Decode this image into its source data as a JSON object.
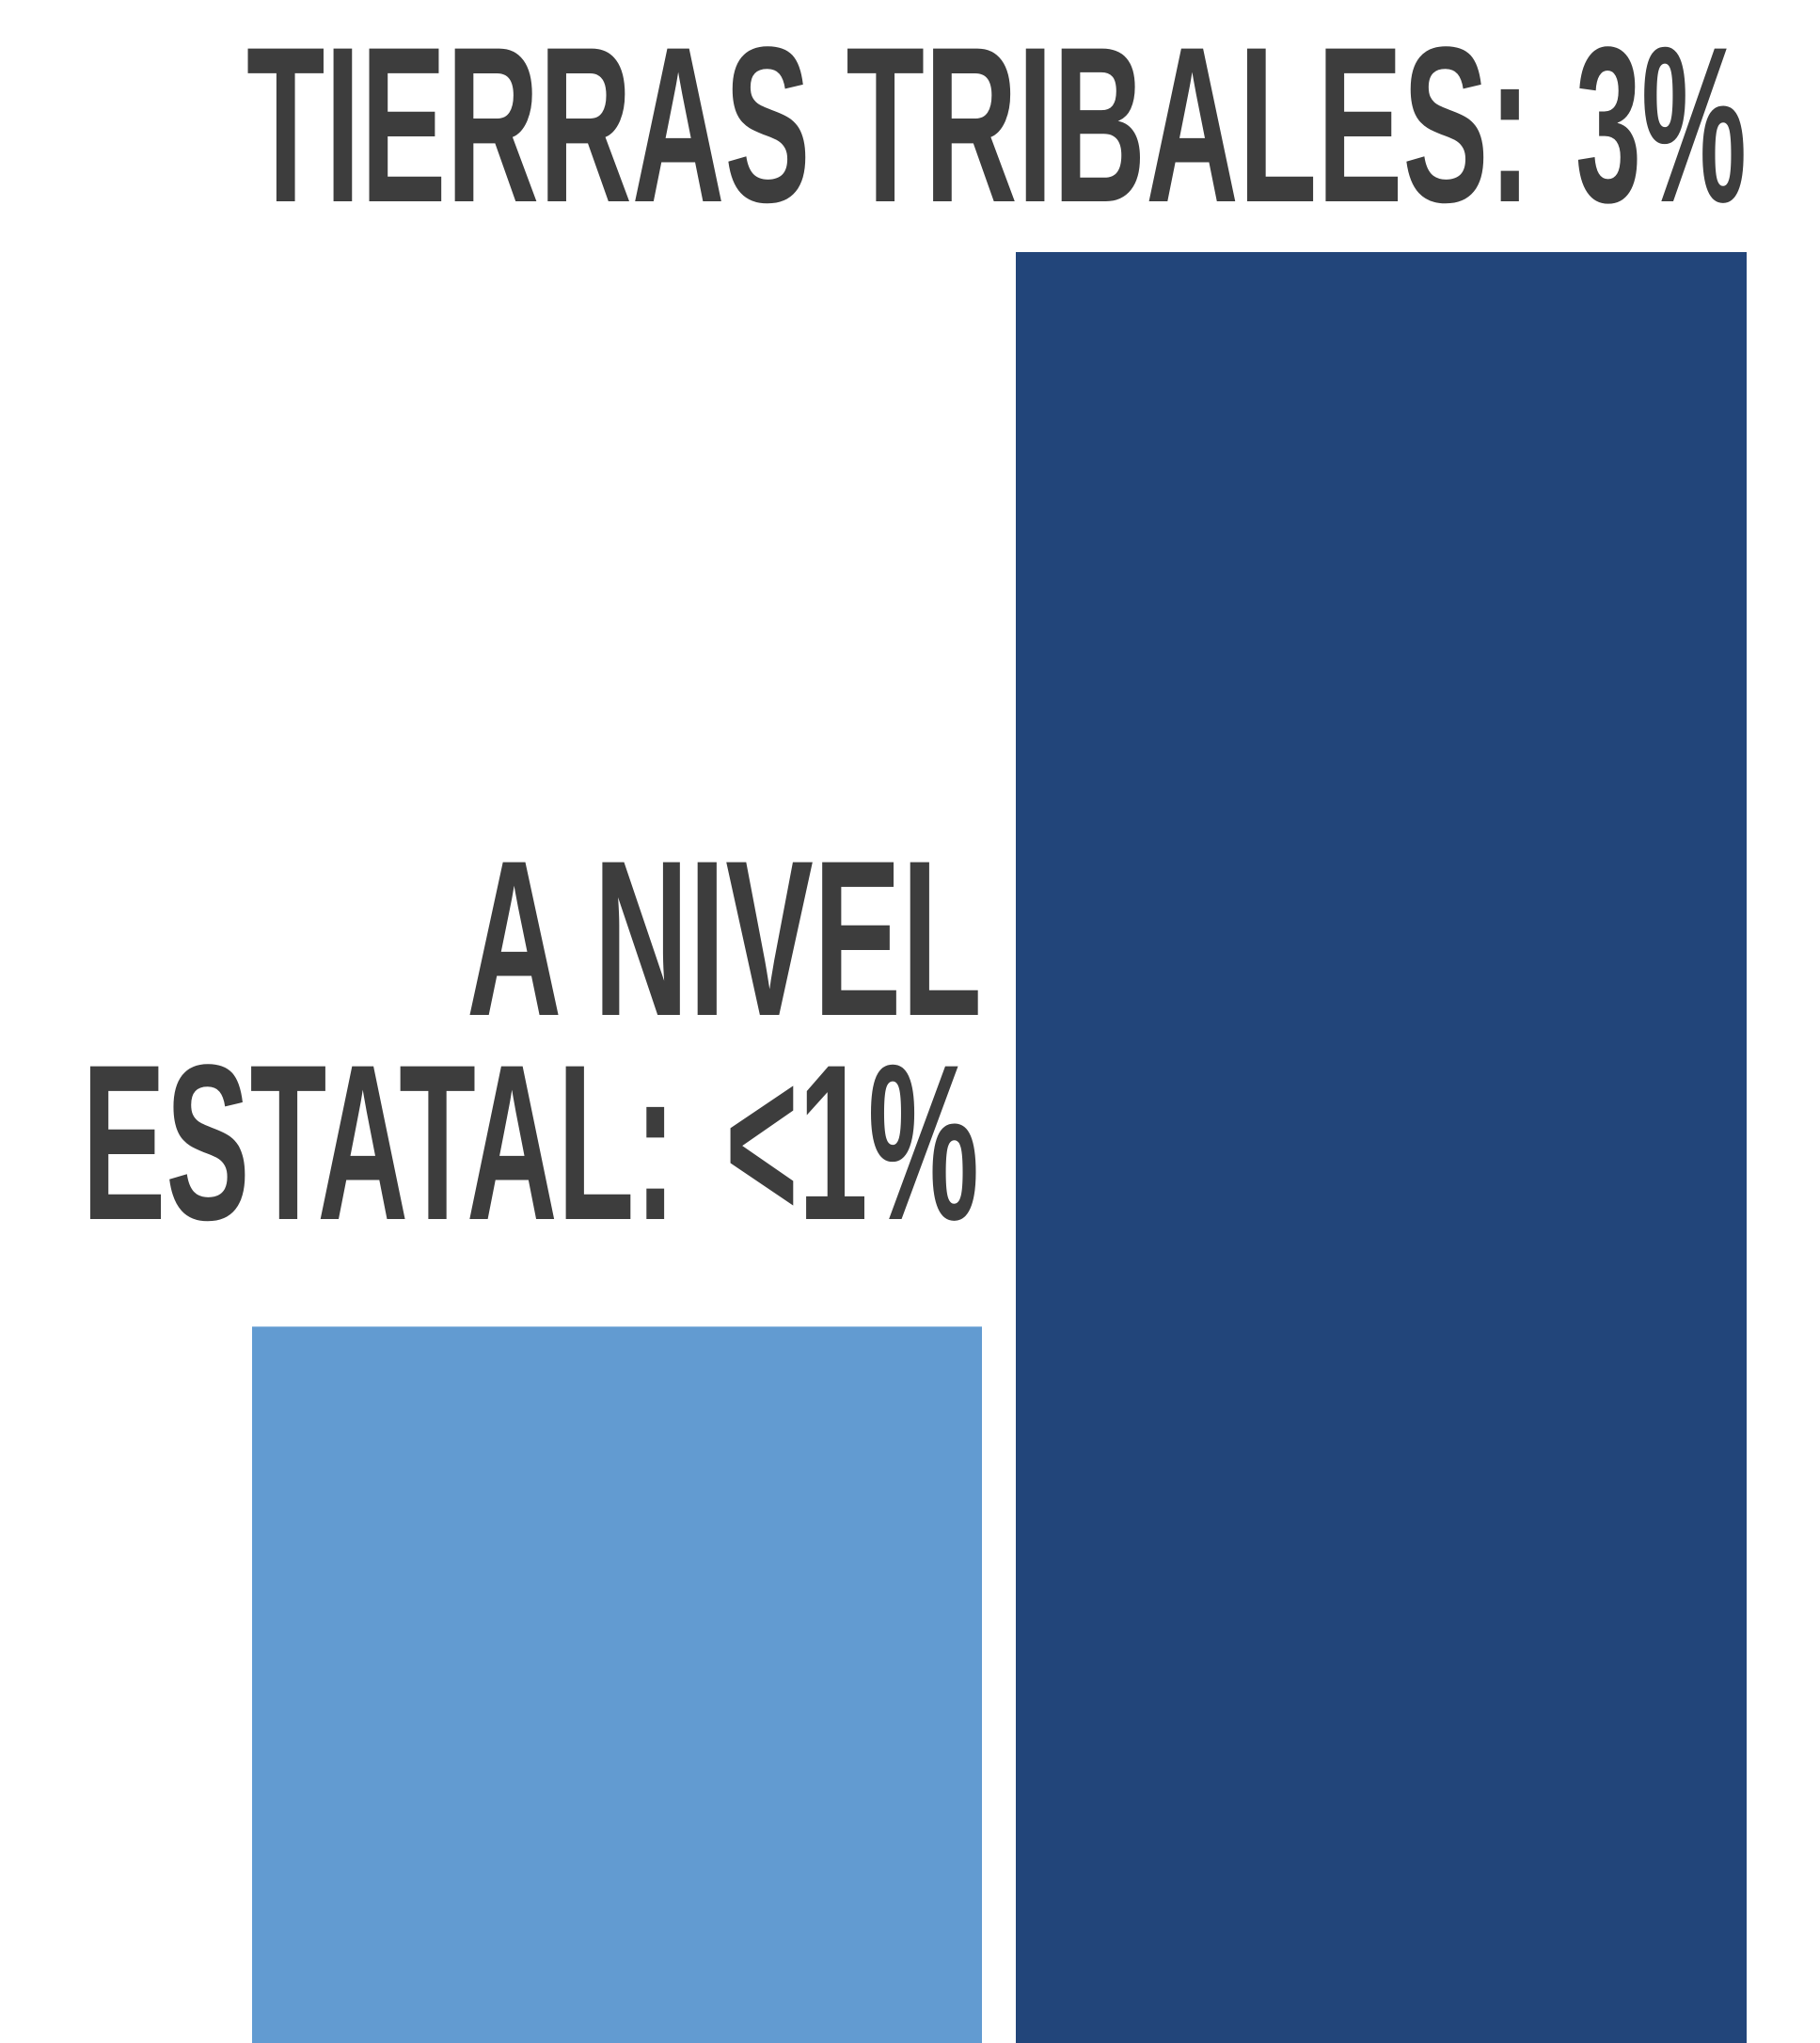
{
  "chart_data": {
    "type": "bar",
    "categories": [
      [
        "TIERRAS TRIBALES:"
      ],
      [
        "A NIVEL",
        "ESTATAL:"
      ]
    ],
    "values": [
      3,
      0.9
    ],
    "value_labels": [
      "3%",
      "<1%"
    ],
    "colors": [
      "#22457a",
      "#629bd1"
    ],
    "ylim": [
      -0.5,
      3
    ]
  }
}
